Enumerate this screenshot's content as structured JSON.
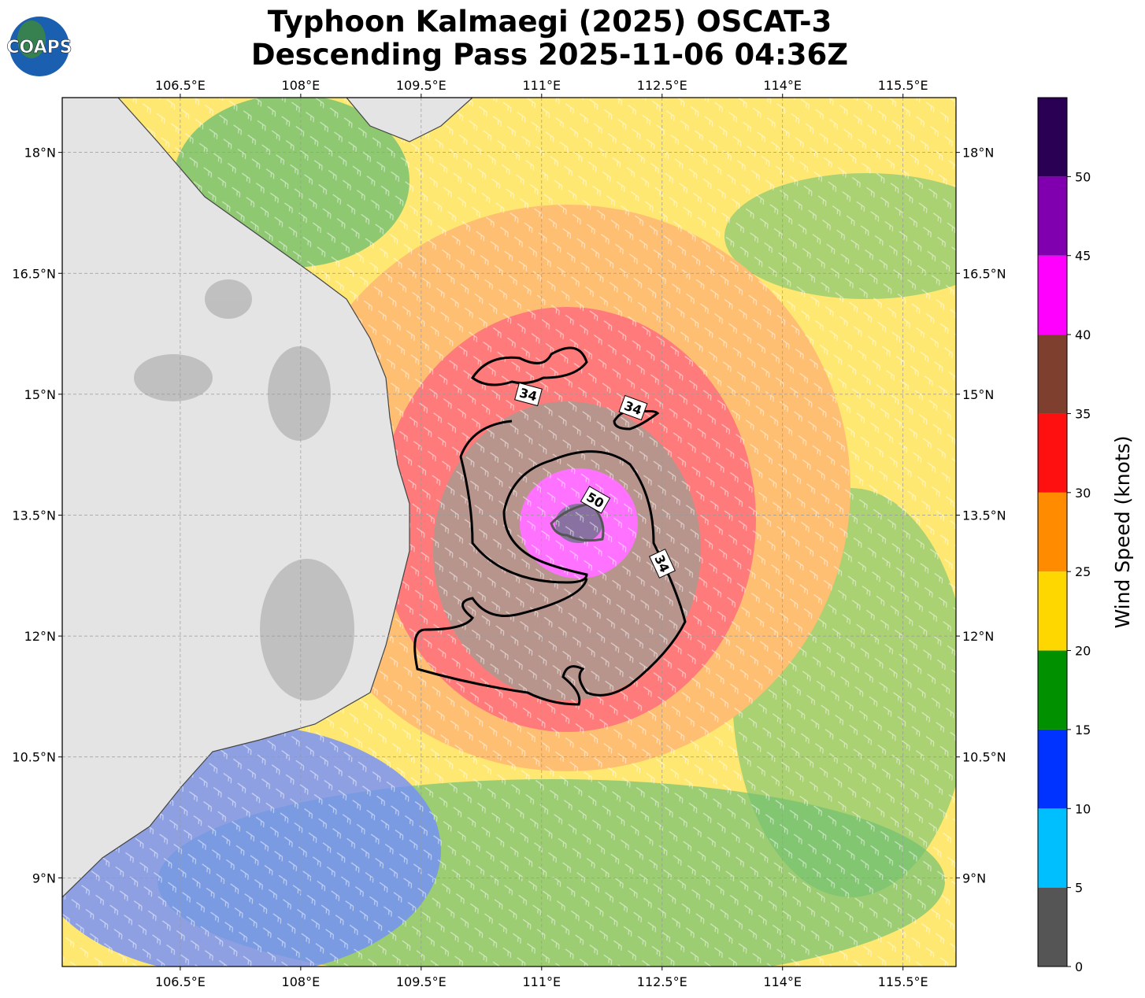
{
  "chart_data": {
    "type": "barbs",
    "title": [
      "Typhoon Kalmaegi (2025) OSCAT-3",
      "Descending Pass 2025-11-06 04:36Z"
    ],
    "logo": "COAPS",
    "xlim": [
      105.03,
      116.16
    ],
    "ylim": [
      7.9,
      18.68
    ],
    "xticks": [
      {
        "value": 106.5,
        "label": "106.5°E"
      },
      {
        "value": 108,
        "label": "108°E"
      },
      {
        "value": 109.5,
        "label": "109.5°E"
      },
      {
        "value": 111,
        "label": "111°E"
      },
      {
        "value": 112.5,
        "label": "112.5°E"
      },
      {
        "value": 114,
        "label": "114°E"
      },
      {
        "value": 115.5,
        "label": "115.5°E"
      }
    ],
    "yticks": [
      {
        "value": 18,
        "label": "18°N"
      },
      {
        "value": 16.5,
        "label": "16.5°N"
      },
      {
        "value": 15,
        "label": "15°N"
      },
      {
        "value": 13.5,
        "label": "13.5°N"
      },
      {
        "value": 12,
        "label": "12°N"
      },
      {
        "value": 10.5,
        "label": "10.5°N"
      },
      {
        "value": 9,
        "label": "9°N"
      }
    ],
    "grid": true,
    "contour_labels": [
      "34",
      "34",
      "34",
      "50"
    ],
    "colorbar": {
      "label": "Wind Speed (knots)",
      "bounds": [
        0,
        5,
        10,
        15,
        20,
        25,
        30,
        35,
        40,
        45,
        50,
        55
      ],
      "colors": [
        "#555555",
        "#00bfff",
        "#0033ff",
        "#009000",
        "#ffd700",
        "#ff8c00",
        "#ff1010",
        "#7f3f2f",
        "#ff00ff",
        "#8000b0",
        "#2a0055"
      ],
      "ticks": [
        0,
        5,
        10,
        15,
        20,
        25,
        30,
        35,
        40,
        45,
        50
      ]
    }
  }
}
